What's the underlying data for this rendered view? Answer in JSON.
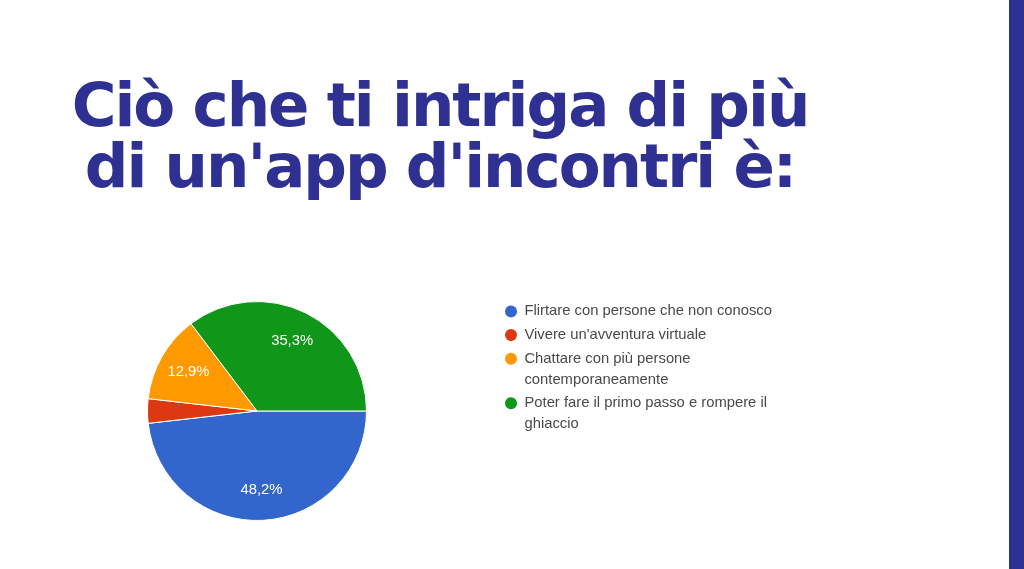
{
  "chart_data": {
    "type": "pie",
    "title": "Ciò che ti intriga di più di un'app d'incontri è:",
    "categories": [
      "Flirtare con persone che non conosco",
      "Vivere un'avventura virtuale",
      "Chattare con più persone contemporaneamente",
      "Poter fare il primo passo e rompere il ghiaccio"
    ],
    "values": [
      48.2,
      3.6,
      12.9,
      35.3
    ],
    "colors": [
      "#3366cc",
      "#dc3912",
      "#ff9900",
      "#109618"
    ],
    "value_labels": [
      "48,2%",
      null,
      "12,9%",
      "35,3%"
    ],
    "legend": "top right"
  }
}
